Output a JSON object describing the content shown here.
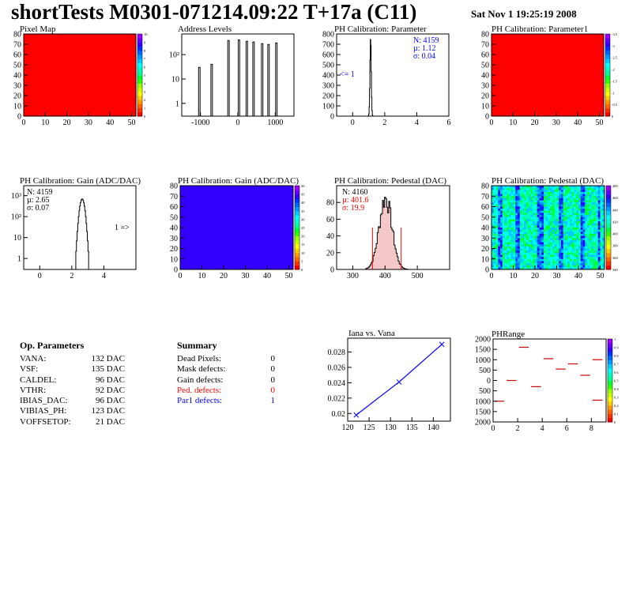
{
  "header": {
    "title": "shortTests M0301-071214.09:22 T+17a (C11)",
    "date": "Sat Nov  1 19:25:19 2008"
  },
  "palette": [
    "#ff0000",
    "#ff3300",
    "#ff6600",
    "#ff9900",
    "#ffcc00",
    "#ffff00",
    "#ccff00",
    "#99ff00",
    "#33ff00",
    "#00ff33",
    "#00ff99",
    "#00ffcc",
    "#00ffff",
    "#00ccff",
    "#0099ff",
    "#0066ff",
    "#0033ff",
    "#3300ff",
    "#6600ff",
    "#9900ff"
  ],
  "chart_data": [
    {
      "type": "heatmap",
      "title": "Pixel Map",
      "xlim": [
        0,
        52
      ],
      "ylim": [
        0,
        80
      ],
      "xticks": [
        0,
        10,
        20,
        30,
        40,
        50
      ],
      "yticks": [
        0,
        10,
        20,
        30,
        40,
        50,
        60,
        70,
        80
      ],
      "fill": "#ff0000",
      "zlim": [
        0,
        10
      ],
      "zticks": [
        "0",
        "1",
        "2",
        "3",
        "4",
        "5",
        "6",
        "7",
        "8",
        "9",
        "10"
      ]
    },
    {
      "type": "bar",
      "title": "Address Levels",
      "log_y": true,
      "xlim": [
        -1500,
        1500
      ],
      "ylim": [
        0.3,
        700
      ],
      "xticks": [
        -1000,
        0,
        1000
      ],
      "yticks": [
        1,
        10,
        100
      ],
      "ytick_labels": [
        "1",
        "10",
        "10²"
      ],
      "peaks": [
        {
          "x": -1030,
          "y": 30
        },
        {
          "x": -700,
          "y": 40
        },
        {
          "x": -250,
          "y": 380
        },
        {
          "x": 30,
          "y": 400
        },
        {
          "x": 240,
          "y": 350
        },
        {
          "x": 420,
          "y": 330
        },
        {
          "x": 650,
          "y": 280
        },
        {
          "x": 820,
          "y": 260
        },
        {
          "x": 1030,
          "y": 300
        }
      ]
    },
    {
      "type": "bar",
      "title": "PH Calibration: Parameter",
      "xlim": [
        -1,
        6
      ],
      "ylim": [
        0,
        800
      ],
      "xticks": [
        0,
        2,
        4,
        6
      ],
      "yticks": [
        0,
        100,
        200,
        300,
        400,
        500,
        600,
        700,
        800
      ],
      "peak": {
        "mean": 1.12,
        "sigma": 0.04,
        "height": 760
      },
      "stats": [
        "N: 4159",
        "µ: 1.12",
        "σ: 0.04"
      ],
      "annotation": "<= 1"
    },
    {
      "type": "heatmap",
      "title": "PH Calibration: Parameter1",
      "xlim": [
        0,
        52
      ],
      "ylim": [
        0,
        80
      ],
      "xticks": [
        0,
        10,
        20,
        30,
        40,
        50
      ],
      "yticks": [
        0,
        10,
        20,
        30,
        40,
        50,
        60,
        70,
        80
      ],
      "fill": "#ff0000",
      "zlim": [
        -3.5,
        0
      ],
      "zticks": [
        "0",
        "-0.5",
        "-1",
        "-1.5",
        "-2",
        "-2.5",
        "-3",
        "-3.5"
      ]
    },
    {
      "type": "bar",
      "title": "PH Calibration: Gain (ADC/DAC)",
      "log_y": true,
      "xlim": [
        -1,
        6
      ],
      "ylim": [
        0.3,
        3000
      ],
      "xticks": [
        0,
        2,
        4
      ],
      "yticks": [
        1,
        10,
        100,
        1000
      ],
      "ytick_labels": [
        "1",
        "10",
        "10²",
        "10³"
      ],
      "peak": {
        "mean": 2.65,
        "sigma": 0.07,
        "height": 700
      },
      "stats": [
        "N: 4159",
        "µ: 2.65",
        "σ: 0.07"
      ],
      "annotation": "1 =>"
    },
    {
      "type": "heatmap",
      "title": "PH Calibration: Gain (ADC/DAC)",
      "xlim": [
        0,
        52
      ],
      "ylim": [
        0,
        80
      ],
      "xticks": [
        0,
        10,
        20,
        30,
        40,
        50
      ],
      "yticks": [
        0,
        10,
        20,
        30,
        40,
        50,
        60,
        70,
        80
      ],
      "fill": "#3300ff",
      "zlim": [
        0,
        50
      ],
      "zticks": [
        "0",
        "5",
        "10",
        "15",
        "20",
        "25",
        "30",
        "35",
        "40",
        "45",
        "50"
      ]
    },
    {
      "type": "bar",
      "title": "PH Calibration: Pedestal (DAC)",
      "xlim": [
        250,
        600
      ],
      "ylim": [
        0,
        100
      ],
      "xticks": [
        300,
        400,
        500
      ],
      "yticks": [
        0,
        20,
        40,
        60,
        80
      ],
      "peak": {
        "mean": 401.6,
        "sigma": 19.9,
        "height": 85
      },
      "cuts": [
        361,
        450
      ],
      "stats": [
        "N: 4160",
        "µ: 401.6",
        "σ: 19.9"
      ]
    },
    {
      "type": "heatmap",
      "title": "PH Calibration: Pedestal (DAC)",
      "xlim": [
        0,
        52
      ],
      "ylim": [
        0,
        80
      ],
      "xticks": [
        0,
        10,
        20,
        30,
        40,
        50
      ],
      "yticks": [
        0,
        10,
        20,
        30,
        40,
        50,
        60,
        70,
        80
      ],
      "zlim": [
        340,
        480
      ],
      "zticks": [
        "340",
        "360",
        "380",
        "400",
        "420",
        "440",
        "460",
        "480"
      ]
    },
    {
      "type": "line",
      "title": "Iana vs. Vana",
      "xlim": [
        120,
        144
      ],
      "ylim": [
        0.019,
        0.0298
      ],
      "xticks": [
        120,
        125,
        130,
        135,
        140
      ],
      "yticks": [
        0.02,
        0.022,
        0.024,
        0.026,
        0.028
      ],
      "x": [
        122,
        132,
        142
      ],
      "y": [
        0.0198,
        0.0241,
        0.029
      ]
    },
    {
      "type": "scatter",
      "title": "PHRange",
      "xlim": [
        0,
        9.2
      ],
      "ylim": [
        -2000,
        2000
      ],
      "xticks": [
        0,
        2,
        4,
        6,
        8
      ],
      "yticks": [
        -2000,
        -1500,
        -1000,
        -500,
        0,
        500,
        1000,
        1500,
        2000
      ],
      "ytick_labels": [
        "2000",
        "1500",
        "1000",
        "500",
        "0",
        "500",
        "1000",
        "1500",
        "2000"
      ],
      "segments": [
        {
          "x": 0.5,
          "y": -1000
        },
        {
          "x": 1.5,
          "y": 0
        },
        {
          "x": 2.5,
          "y": 1600
        },
        {
          "x": 3.5,
          "y": -300
        },
        {
          "x": 4.5,
          "y": 1050
        },
        {
          "x": 5.5,
          "y": 550
        },
        {
          "x": 6.5,
          "y": 800
        },
        {
          "x": 7.5,
          "y": 250
        },
        {
          "x": 8.5,
          "y": 1000
        },
        {
          "x": 8.5,
          "y": -950
        }
      ],
      "zlim": [
        0,
        1
      ],
      "zticks": [
        "0",
        "0.1",
        "0.2",
        "0.3",
        "0.4",
        "0.5",
        "0.6",
        "0.7",
        "0.8",
        "0.9",
        "1"
      ]
    }
  ],
  "op_parameters": {
    "title": "Op. Parameters",
    "rows": [
      {
        "key": "VANA:",
        "value": "132 DAC"
      },
      {
        "key": "VSF:",
        "value": "135 DAC"
      },
      {
        "key": "CALDEL:",
        "value": "96 DAC"
      },
      {
        "key": "VTHR:",
        "value": "92 DAC"
      },
      {
        "key": "IBIAS_DAC:",
        "value": "96 DAC"
      },
      {
        "key": "VIBIAS_PH:",
        "value": "123 DAC"
      },
      {
        "key": "VOFFSETOP:",
        "value": "21 DAC"
      }
    ]
  },
  "summary": {
    "title": "Summary",
    "rows": [
      {
        "key": "Dead Pixels:",
        "value": "0",
        "color": "#000000"
      },
      {
        "key": "Mask defects:",
        "value": "0",
        "color": "#000000"
      },
      {
        "key": "Gain defects:",
        "value": "0",
        "color": "#000000"
      },
      {
        "key": "Ped. defects:",
        "value": "0",
        "color": "#ff0000"
      },
      {
        "key": "Par1 defects:",
        "value": "1",
        "color": "#0000ff"
      }
    ]
  }
}
